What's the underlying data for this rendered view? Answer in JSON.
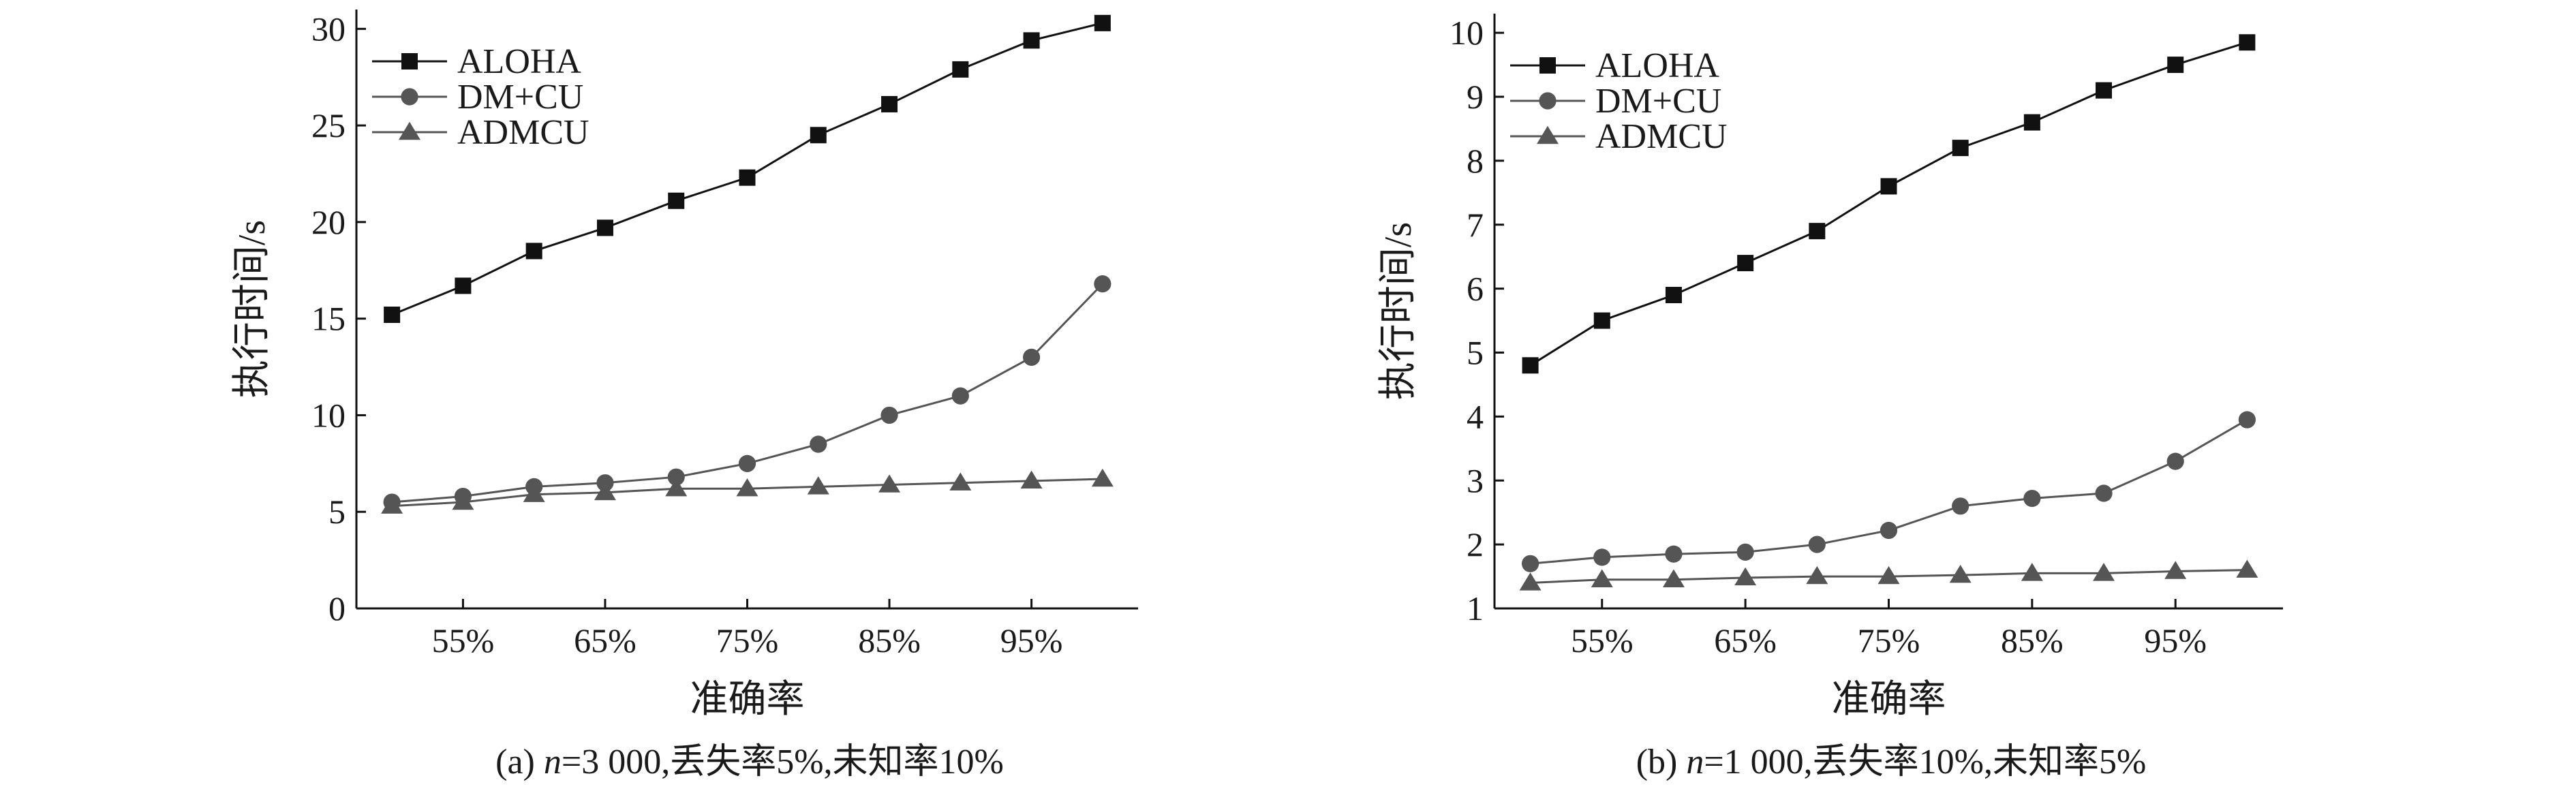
{
  "chart_data": [
    {
      "type": "line",
      "panel_label": "(a)",
      "caption_prefix": "(a) ",
      "caption_italic": "n",
      "caption_rest": "=3 000,丢失率5%,未知率10%",
      "xlabel": "准确率",
      "ylabel": "执行时间/s",
      "x": [
        50,
        55,
        60,
        65,
        70,
        75,
        80,
        85,
        90,
        95,
        100
      ],
      "x_tick_values": [
        55,
        65,
        75,
        85,
        95
      ],
      "x_tick_labels": [
        "55%",
        "65%",
        "75%",
        "85%",
        "95%"
      ],
      "xlim": [
        47.5,
        102.5
      ],
      "ylim": [
        0,
        31
      ],
      "y_ticks": [
        0,
        5,
        10,
        15,
        20,
        25,
        30
      ],
      "y_tick_labels": [
        "0",
        "5",
        "10",
        "15",
        "20",
        "25",
        "30"
      ],
      "legend_position": "top-left",
      "series": [
        {
          "name": "ALOHA",
          "marker": "square",
          "color": "#111111",
          "values": [
            15.2,
            16.7,
            18.5,
            19.7,
            21.1,
            22.3,
            24.5,
            26.1,
            27.9,
            29.4,
            30.3
          ]
        },
        {
          "name": "DM+CU",
          "marker": "circle",
          "color": "#555555",
          "values": [
            5.5,
            5.8,
            6.3,
            6.5,
            6.8,
            7.5,
            8.5,
            10.0,
            11.0,
            13.0,
            16.8
          ]
        },
        {
          "name": "ADMCU",
          "marker": "triangle",
          "color": "#555555",
          "values": [
            5.3,
            5.5,
            5.9,
            6.0,
            6.2,
            6.2,
            6.3,
            6.4,
            6.5,
            6.6,
            6.7
          ]
        }
      ]
    },
    {
      "type": "line",
      "panel_label": "(b)",
      "caption_prefix": "(b) ",
      "caption_italic": "n",
      "caption_rest": "=1 000,丢失率10%,未知率5%",
      "xlabel": "准确率",
      "ylabel": "执行时间/s",
      "x": [
        50,
        55,
        60,
        65,
        70,
        75,
        80,
        85,
        90,
        95,
        100
      ],
      "x_tick_values": [
        55,
        65,
        75,
        85,
        95
      ],
      "x_tick_labels": [
        "55%",
        "65%",
        "75%",
        "85%",
        "95%"
      ],
      "xlim": [
        47.5,
        102.5
      ],
      "ylim": [
        1,
        10.3
      ],
      "y_ticks": [
        1,
        2,
        3,
        4,
        5,
        6,
        7,
        8,
        9,
        10
      ],
      "y_tick_labels": [
        "1",
        "2",
        "3",
        "4",
        "5",
        "6",
        "7",
        "8",
        "9",
        "10"
      ],
      "legend_position": "top-left",
      "series": [
        {
          "name": "ALOHA",
          "marker": "square",
          "color": "#111111",
          "values": [
            4.8,
            5.5,
            5.9,
            6.4,
            6.9,
            7.6,
            8.2,
            8.6,
            9.1,
            9.5,
            9.85
          ]
        },
        {
          "name": "DM+CU",
          "marker": "circle",
          "color": "#555555",
          "values": [
            1.7,
            1.8,
            1.85,
            1.88,
            2.0,
            2.22,
            2.6,
            2.72,
            2.8,
            3.3,
            3.95
          ]
        },
        {
          "name": "ADMCU",
          "marker": "triangle",
          "color": "#555555",
          "values": [
            1.4,
            1.45,
            1.45,
            1.48,
            1.5,
            1.5,
            1.52,
            1.55,
            1.55,
            1.58,
            1.6
          ]
        }
      ]
    }
  ]
}
